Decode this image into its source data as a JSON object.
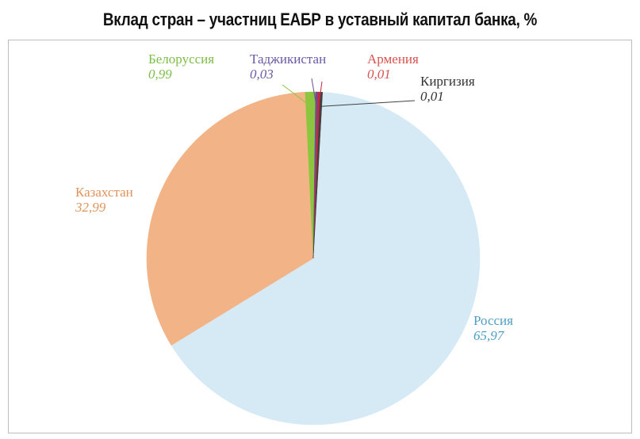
{
  "title": "Вклад стран – участниц ЕАБР в уставный капитал банка, %",
  "chart_data": {
    "type": "pie",
    "title": "Вклад стран – участниц ЕАБР в уставный капитал банка, %",
    "slices": [
      {
        "name": "Россия",
        "label": "65,97",
        "value": 65.97,
        "color": "#d6eaf5",
        "label_color": "#4e9ec6"
      },
      {
        "name": "Казахстан",
        "label": "32,99",
        "value": 32.99,
        "color": "#f2b486",
        "label_color": "#e0935a"
      },
      {
        "name": "Белоруссия",
        "label": "0,99",
        "value": 0.99,
        "color": "#8cc63f",
        "label_color": "#7cbf45"
      },
      {
        "name": "Таджикистан",
        "label": "0,03",
        "value": 0.03,
        "color": "#6b4e9a",
        "label_color": "#6b5aa6"
      },
      {
        "name": "Армения",
        "label": "0,01",
        "value": 0.01,
        "color": "#c8283c",
        "label_color": "#d9534f"
      },
      {
        "name": "Киргизия",
        "label": "0,01",
        "value": 0.01,
        "color": "#404040",
        "label_color": "#333333"
      }
    ]
  }
}
